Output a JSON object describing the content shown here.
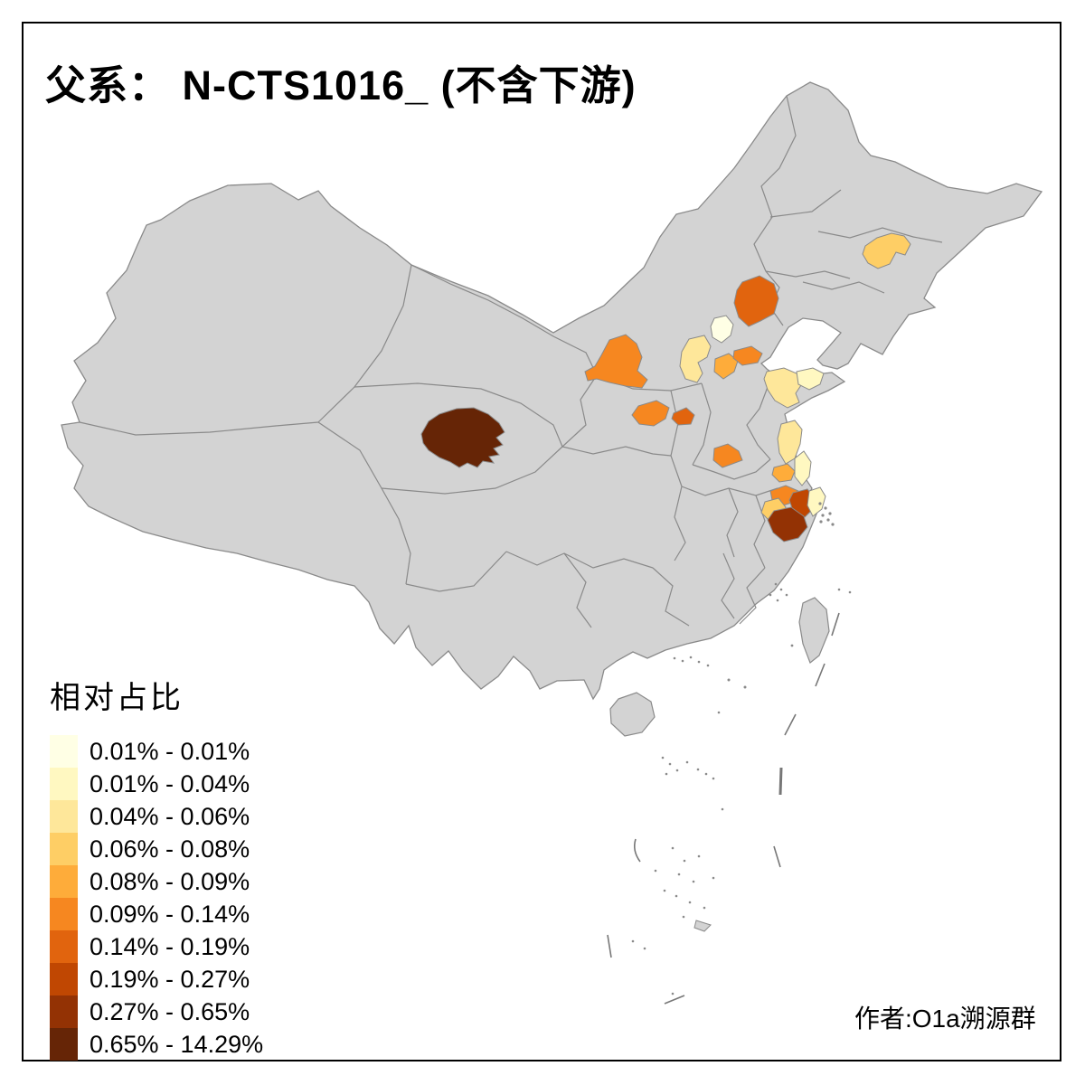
{
  "title": "父系： N-CTS1016_ (不含下游)",
  "attribution": "作者:O1a溯源群",
  "legend": {
    "title": "相对占比",
    "classes": [
      {
        "label": "0.01% - 0.01%",
        "color": "#FFFFE5"
      },
      {
        "label": "0.01% - 0.04%",
        "color": "#FFF8C1"
      },
      {
        "label": "0.04% - 0.06%",
        "color": "#FEE79A"
      },
      {
        "label": "0.06% - 0.08%",
        "color": "#FECE65"
      },
      {
        "label": "0.08% - 0.09%",
        "color": "#FEAC3A"
      },
      {
        "label": "0.09% - 0.14%",
        "color": "#F68720"
      },
      {
        "label": "0.14% - 0.19%",
        "color": "#E1640E"
      },
      {
        "label": "0.19% - 0.27%",
        "color": "#C04702"
      },
      {
        "label": "0.27% - 0.65%",
        "color": "#933204"
      },
      {
        "label": "0.65% - 14.29%",
        "color": "#662506"
      }
    ]
  },
  "map": {
    "type": "choropleth",
    "land_color": "#D3D3D3",
    "border_color": "#8A8A8A",
    "sea_color": "#FFFFFF",
    "frame_color": "#000000",
    "regions": [
      {
        "id": "qinghai-south",
        "class_index": 10
      },
      {
        "id": "ordos",
        "class_index": 6
      },
      {
        "id": "changchun",
        "class_index": 4
      },
      {
        "id": "chengde",
        "class_index": 7
      },
      {
        "id": "beijing",
        "class_index": 1
      },
      {
        "id": "zhangjiakou-baoding",
        "class_index": 3
      },
      {
        "id": "shijiazhuang",
        "class_index": 5
      },
      {
        "id": "hengshui",
        "class_index": 6
      },
      {
        "id": "linfen",
        "class_index": 6
      },
      {
        "id": "changzhi",
        "class_index": 7
      },
      {
        "id": "shandong-central",
        "class_index": 3
      },
      {
        "id": "shandong-east",
        "class_index": 2
      },
      {
        "id": "zhengzhou",
        "class_index": 6
      },
      {
        "id": "yancheng",
        "class_index": 3
      },
      {
        "id": "jiangsu-coast",
        "class_index": 2
      },
      {
        "id": "huaian",
        "class_index": 5
      },
      {
        "id": "nanjing",
        "class_index": 6
      },
      {
        "id": "wuxi",
        "class_index": 8
      },
      {
        "id": "xuancheng",
        "class_index": 4
      },
      {
        "id": "huzhou-hangzhou",
        "class_index": 9
      },
      {
        "id": "shanghai",
        "class_index": 2
      }
    ]
  }
}
